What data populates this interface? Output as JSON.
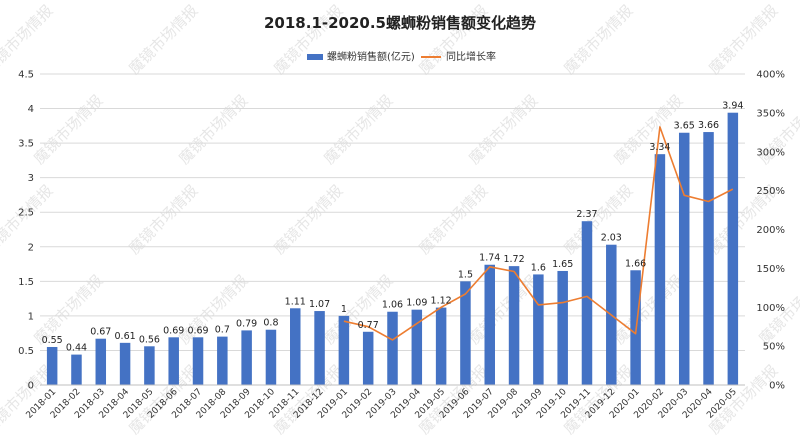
{
  "chart_data": {
    "type": "bar+line",
    "title": "2018.1-2020.5螺蛳粉销售额变化趋势",
    "categories": [
      "2018-01",
      "2018-02",
      "2018-03",
      "2018-04",
      "2018-05",
      "2018-06",
      "2018-07",
      "2018-08",
      "2018-09",
      "2018-10",
      "2018-11",
      "2018-12",
      "2019-01",
      "2019-02",
      "2019-03",
      "2019-04",
      "2019-05",
      "2019-06",
      "2019-07",
      "2019-08",
      "2019-09",
      "2019-10",
      "2019-11",
      "2019-12",
      "2020-01",
      "2020-02",
      "2020-03",
      "2020-04",
      "2020-05"
    ],
    "series": [
      {
        "name": "螺蛳粉销售额(亿元)",
        "type": "bar",
        "axis": "left",
        "color": "#4472c4",
        "values": [
          0.55,
          0.44,
          0.67,
          0.61,
          0.56,
          0.69,
          0.69,
          0.7,
          0.79,
          0.8,
          1.11,
          1.07,
          1,
          0.77,
          1.06,
          1.09,
          1.12,
          1.5,
          1.74,
          1.72,
          1.6,
          1.65,
          2.37,
          2.03,
          1.66,
          3.34,
          3.65,
          3.66,
          3.94
        ],
        "labels": [
          "0.55",
          "0.44",
          "0.67",
          "0.61",
          "0.56",
          "0.69",
          "0.69",
          "0.7",
          "0.79",
          "0.8",
          "1.11",
          "1.07",
          "1",
          "0.77",
          "1.06",
          "1.09",
          "1.12",
          "1.5",
          "1.74",
          "1.72",
          "1.6",
          "1.65",
          "2.37",
          "2.03",
          "1.66",
          "3.34",
          "3.65",
          "3.66",
          "3.94"
        ]
      },
      {
        "name": "同比增长率",
        "type": "line",
        "axis": "right",
        "color": "#ed7d31",
        "values": [
          null,
          null,
          null,
          null,
          null,
          null,
          null,
          null,
          null,
          null,
          null,
          null,
          82,
          75,
          58,
          79,
          100,
          117,
          152,
          146,
          103,
          106,
          114,
          90,
          66,
          332,
          244,
          236,
          252
        ]
      }
    ],
    "y_left": {
      "min": 0,
      "max": 4.5,
      "ticks": [
        "0",
        "0.5",
        "1",
        "1.5",
        "2",
        "2.5",
        "3",
        "3.5",
        "4",
        "4.5"
      ]
    },
    "y_right": {
      "min": 0,
      "max": 400,
      "ticks": [
        "0%",
        "50%",
        "100%",
        "150%",
        "200%",
        "250%",
        "300%",
        "350%",
        "400%"
      ]
    },
    "legend_position": "top-right",
    "grid": "horizontal"
  },
  "watermark": "魔镜市场情报"
}
